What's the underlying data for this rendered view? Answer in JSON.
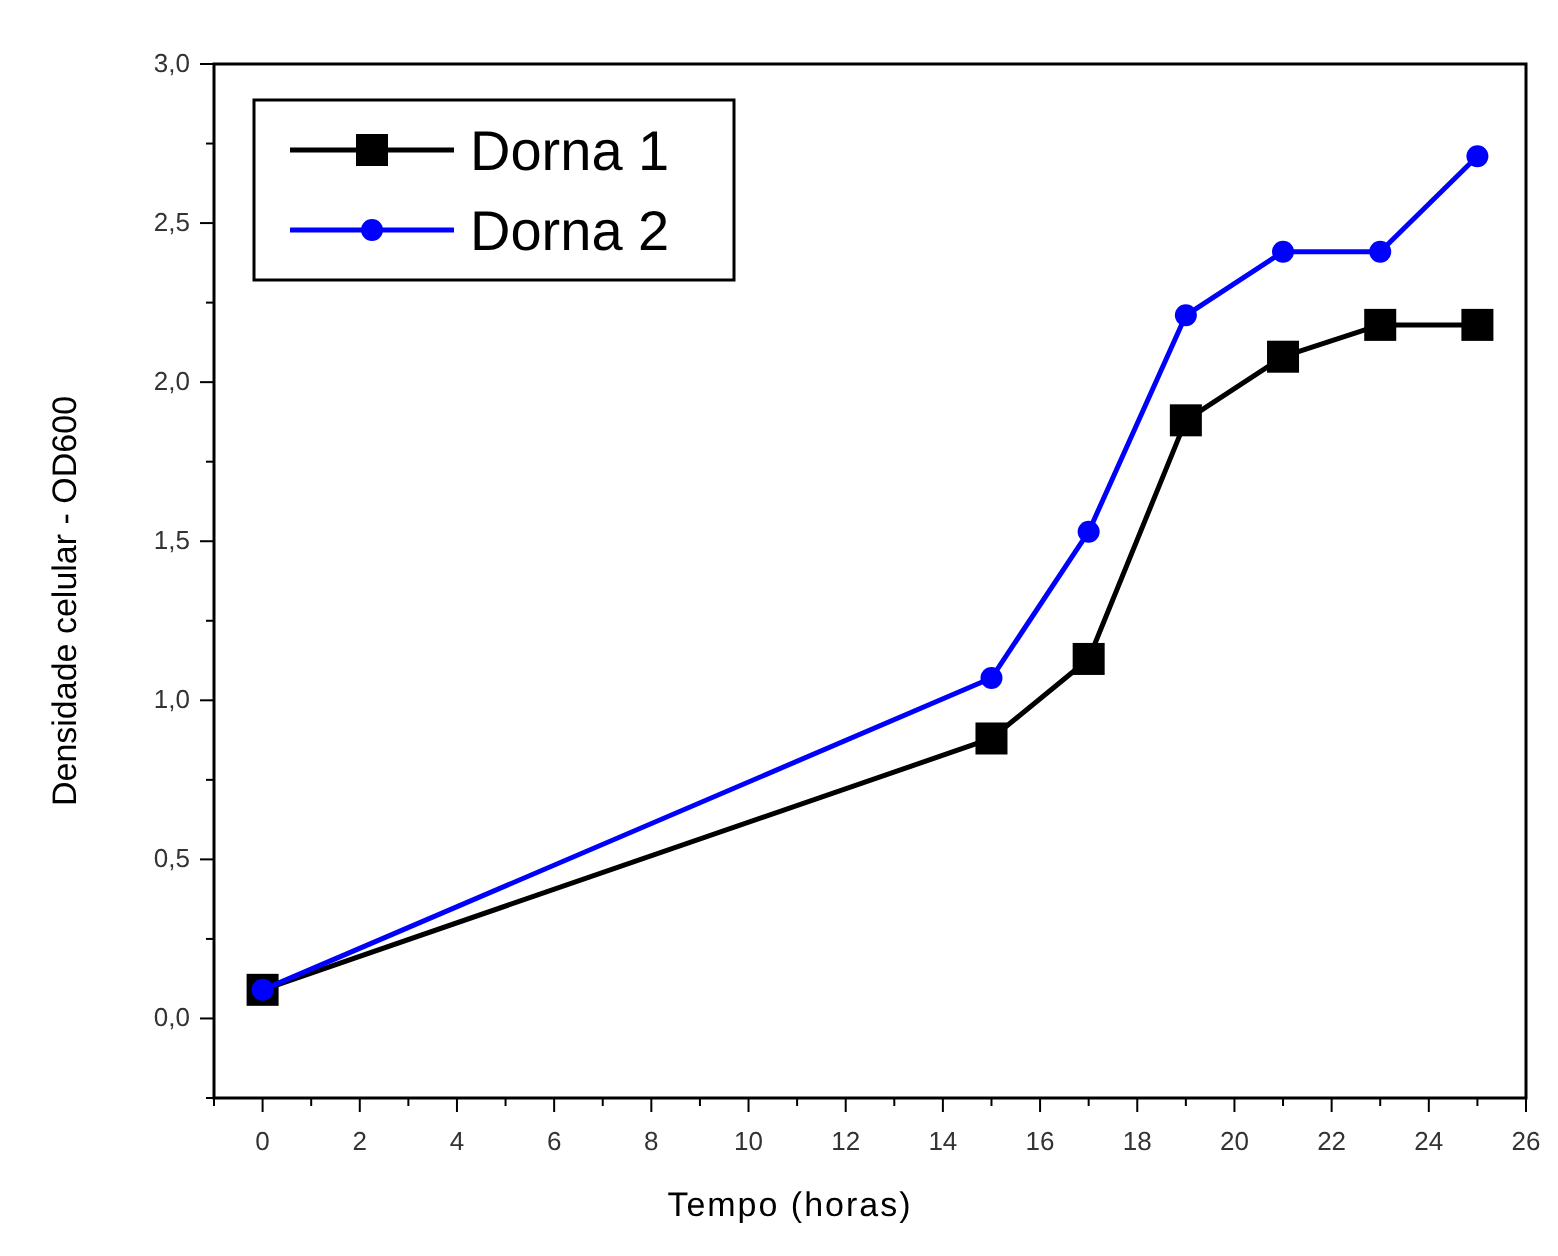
{
  "chart_data": {
    "type": "line",
    "xlabel": "Tempo (horas)",
    "ylabel": "Densidade celular - OD600",
    "x": [
      0,
      15,
      17,
      19,
      21,
      23,
      25
    ],
    "series": [
      {
        "name": "Dorna 1",
        "color": "#000000",
        "marker": "square",
        "values": [
          0.09,
          0.88,
          1.13,
          1.88,
          2.08,
          2.18,
          2.18
        ]
      },
      {
        "name": "Dorna 2",
        "color": "#0000ff",
        "marker": "circle",
        "values": [
          0.09,
          1.07,
          1.53,
          2.21,
          2.41,
          2.41,
          2.71
        ]
      }
    ],
    "xlim": [
      -1,
      26
    ],
    "xticks": [
      {
        "value": -1,
        "label": null
      },
      0,
      {
        "value": 1,
        "label": null
      },
      2,
      {
        "value": 3,
        "label": null
      },
      4,
      {
        "value": 5,
        "label": null
      },
      6,
      {
        "value": 7,
        "label": null
      },
      8,
      {
        "value": 9,
        "label": null
      },
      10,
      {
        "value": 11,
        "label": null
      },
      12,
      {
        "value": 13,
        "label": null
      },
      14,
      {
        "value": 15,
        "label": null
      },
      16,
      {
        "value": 17,
        "label": null
      },
      18,
      {
        "value": 19,
        "label": null
      },
      20,
      {
        "value": 21,
        "label": null
      },
      22,
      {
        "value": 23,
        "label": null
      },
      24,
      {
        "value": 25,
        "label": null
      },
      26
    ],
    "ylim": [
      -0.25,
      3
    ],
    "yticks": [
      {
        "value": -0.25,
        "label": null
      },
      {
        "value": 0,
        "label": "0,0"
      },
      {
        "value": 0.25,
        "label": null
      },
      {
        "value": 0.5,
        "label": "0,5"
      },
      {
        "value": 0.75,
        "label": null
      },
      {
        "value": 1,
        "label": "1,0"
      },
      {
        "value": 1.25,
        "label": null
      },
      {
        "value": 1.5,
        "label": "1,5"
      },
      {
        "value": 1.75,
        "label": null
      },
      {
        "value": 2,
        "label": "2,0"
      },
      {
        "value": 2.25,
        "label": null
      },
      {
        "value": 2.5,
        "label": "2,5"
      },
      {
        "value": 2.75,
        "label": null
      },
      {
        "value": 3,
        "label": "3,0"
      }
    ],
    "grid": false,
    "legend": "top left",
    "line_style": "solid"
  }
}
